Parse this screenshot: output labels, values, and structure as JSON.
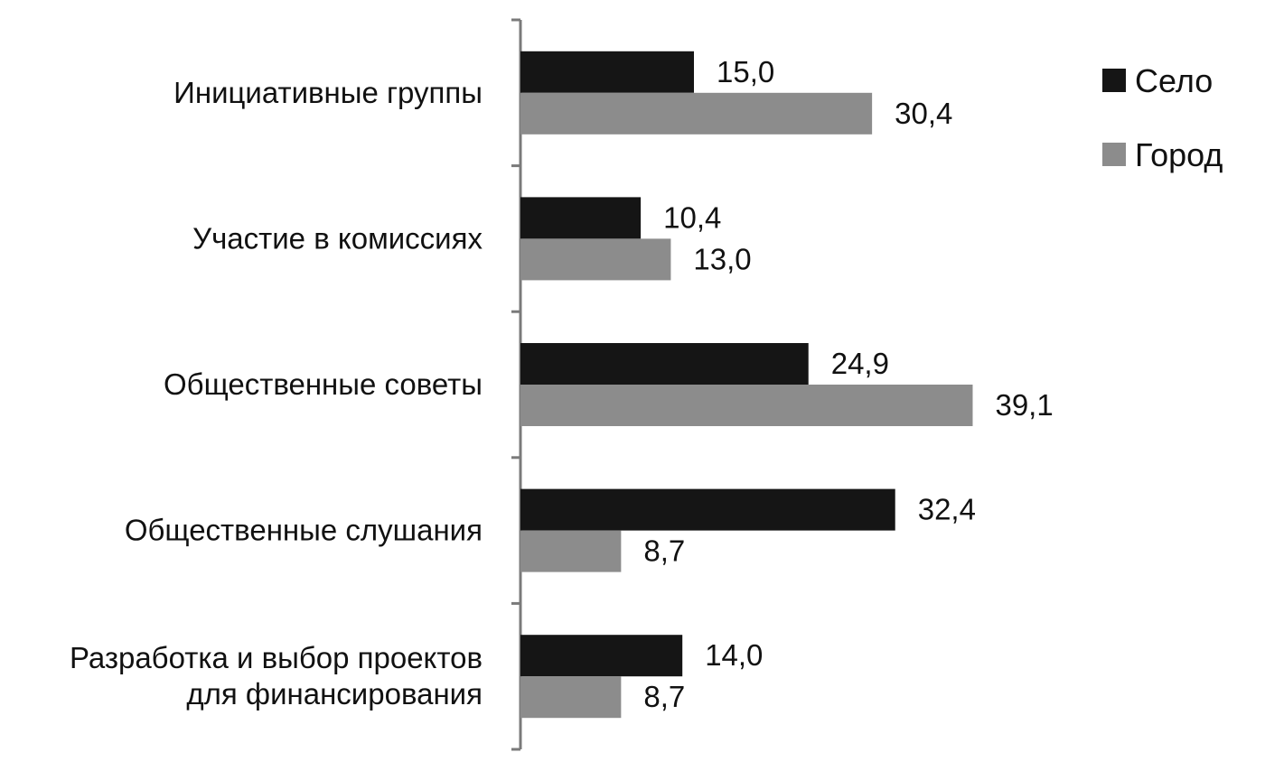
{
  "chart_data": {
    "type": "bar",
    "orientation": "horizontal",
    "categories": [
      [
        "Инициативные группы"
      ],
      [
        "Участие в комиссиях"
      ],
      [
        "Общественные советы"
      ],
      [
        "Общественные слушания"
      ],
      [
        "Разработка и выбор проектов",
        "для финансирования"
      ]
    ],
    "series": [
      {
        "name": "Село",
        "color": "#151515",
        "values": [
          15.0,
          10.4,
          24.9,
          32.4,
          14.0
        ],
        "labels": [
          "15,0",
          "10,4",
          "24,9",
          "32,4",
          "14,0"
        ]
      },
      {
        "name": "Город",
        "color": "#8c8c8c",
        "values": [
          30.4,
          13.0,
          39.1,
          8.7,
          8.7
        ],
        "labels": [
          "30,4",
          "13,0",
          "39,1",
          "8,7",
          "8,7"
        ]
      }
    ],
    "xlim": [
      0,
      45
    ],
    "grid": false,
    "legend_position": "top-right"
  }
}
